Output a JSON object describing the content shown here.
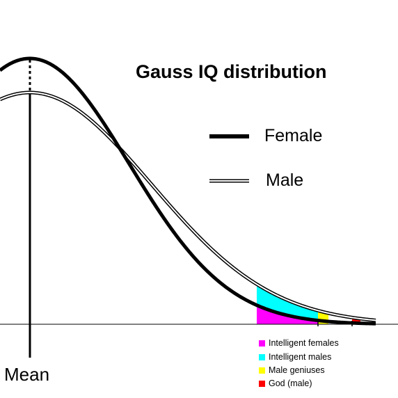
{
  "title": "Gauss IQ distribution",
  "legend": {
    "female": "Female",
    "male": "Male"
  },
  "mean_label": "Mean",
  "color_key": [
    {
      "label": "Intelligent females",
      "color": "#ff00ff"
    },
    {
      "label": "Intelligent males",
      "color": "#00ffff"
    },
    {
      "label": "Male geniuses",
      "color": "#ffff00"
    },
    {
      "label": "God (male)",
      "color": "#ff0000"
    }
  ],
  "colors": {
    "female_curve": "#000000",
    "male_curve_fill": "#ffffff",
    "male_curve_outline": "#000000"
  }
}
